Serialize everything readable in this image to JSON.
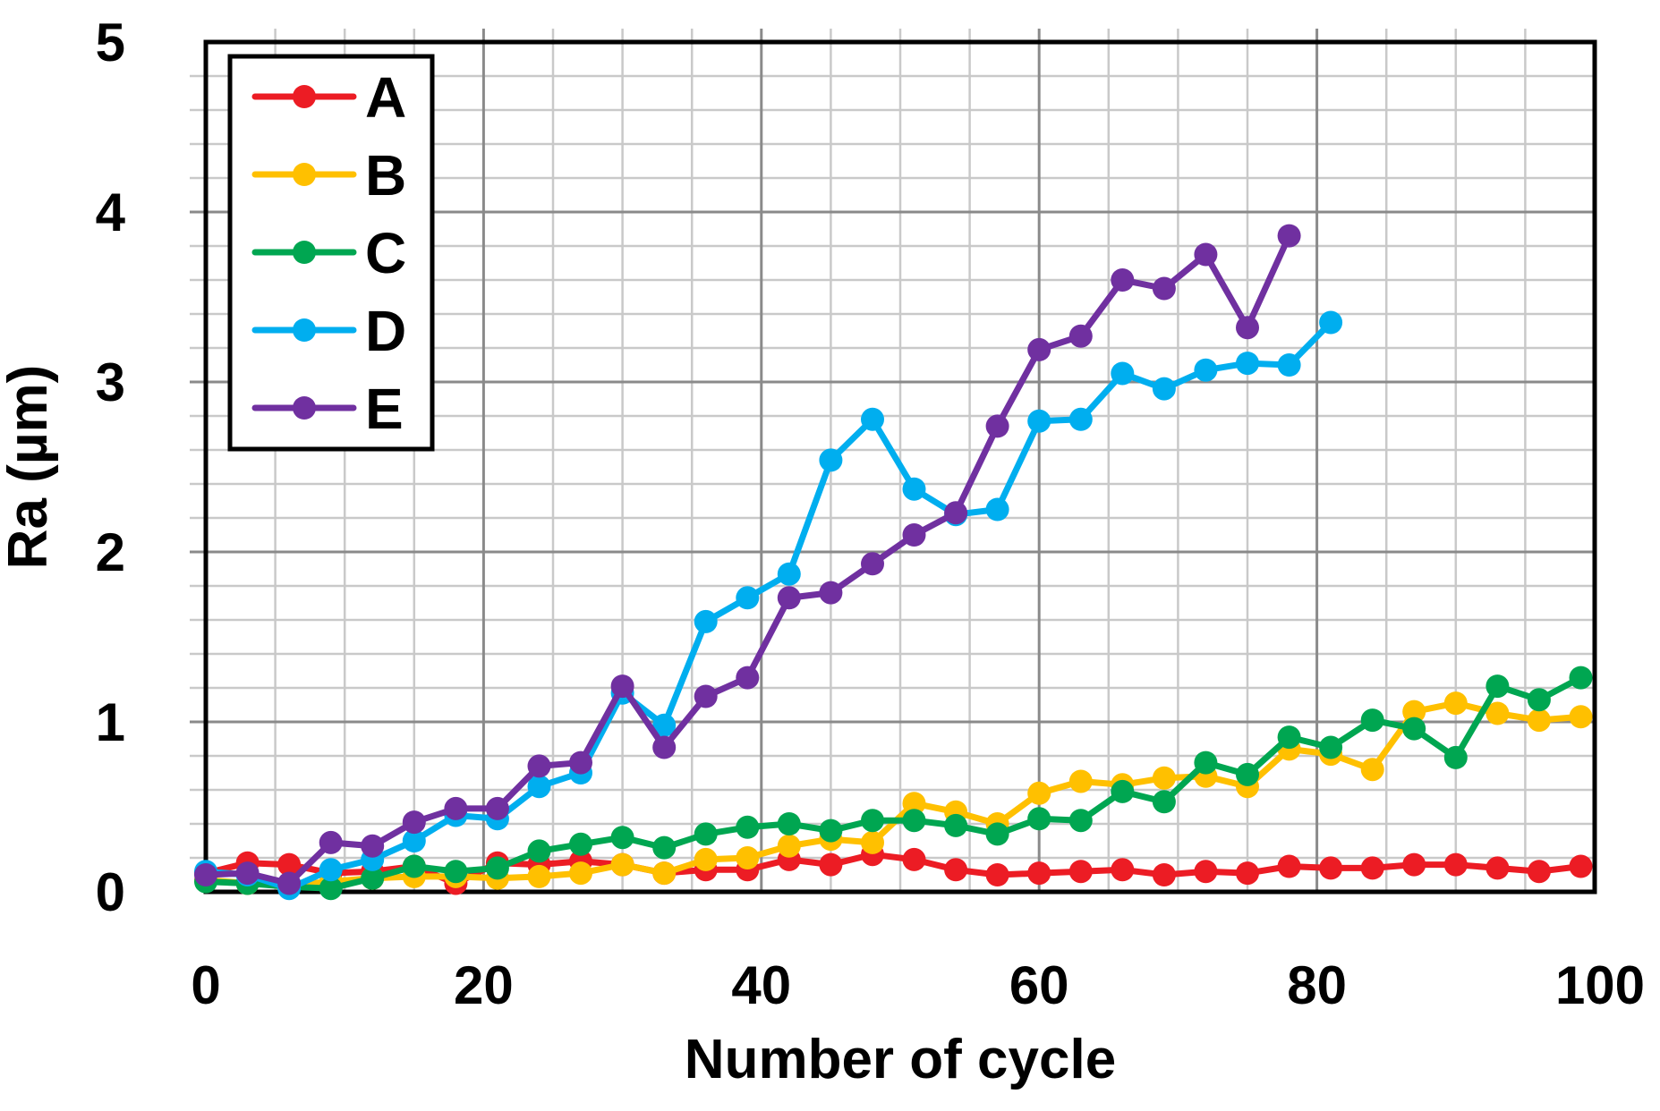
{
  "chart_data": {
    "type": "line",
    "title": "",
    "xlabel": "Number of cycle",
    "ylabel": "Ra (µm)",
    "xlim": [
      0,
      100
    ],
    "ylim": [
      0,
      5
    ],
    "x_major_ticks": [
      0,
      20,
      40,
      60,
      80,
      100
    ],
    "y_major_ticks": [
      0,
      1,
      2,
      3,
      4,
      5
    ],
    "x_minor_step": 5,
    "y_minor_step": 0.2,
    "grid": true,
    "legend_position": "upper-left-inside",
    "series": [
      {
        "name": "A",
        "color": "#EC1C24",
        "x": [
          0,
          3,
          6,
          9,
          12,
          15,
          18,
          21,
          24,
          27,
          30,
          33,
          36,
          39,
          42,
          45,
          48,
          51,
          54,
          57,
          60,
          63,
          66,
          69,
          72,
          75,
          78,
          81,
          84,
          87,
          90,
          93,
          96,
          99
        ],
        "y": [
          0.11,
          0.17,
          0.16,
          0.11,
          0.12,
          0.15,
          0.05,
          0.17,
          0.16,
          0.18,
          0.16,
          0.11,
          0.13,
          0.13,
          0.19,
          0.16,
          0.22,
          0.19,
          0.13,
          0.1,
          0.11,
          0.12,
          0.13,
          0.1,
          0.12,
          0.11,
          0.15,
          0.14,
          0.14,
          0.16,
          0.16,
          0.14,
          0.12,
          0.15
        ]
      },
      {
        "name": "B",
        "color": "#FFC000",
        "x": [
          0,
          3,
          6,
          9,
          12,
          15,
          18,
          21,
          24,
          27,
          30,
          33,
          36,
          39,
          42,
          45,
          48,
          51,
          54,
          57,
          60,
          63,
          66,
          69,
          72,
          75,
          78,
          81,
          84,
          87,
          90,
          93,
          96,
          99
        ],
        "y": [
          0.07,
          0.05,
          0.04,
          0.06,
          0.08,
          0.09,
          0.09,
          0.08,
          0.09,
          0.11,
          0.16,
          0.11,
          0.19,
          0.2,
          0.27,
          0.31,
          0.29,
          0.52,
          0.47,
          0.4,
          0.58,
          0.65,
          0.63,
          0.67,
          0.68,
          0.62,
          0.84,
          0.81,
          0.72,
          1.06,
          1.11,
          1.05,
          1.01,
          1.03
        ]
      },
      {
        "name": "C",
        "color": "#00A651",
        "x": [
          0,
          3,
          6,
          9,
          12,
          15,
          18,
          21,
          24,
          27,
          30,
          33,
          36,
          39,
          42,
          45,
          48,
          51,
          54,
          57,
          60,
          63,
          66,
          69,
          72,
          75,
          78,
          81,
          84,
          87,
          90,
          93,
          96,
          99
        ],
        "y": [
          0.06,
          0.05,
          0.03,
          0.02,
          0.08,
          0.15,
          0.12,
          0.14,
          0.24,
          0.28,
          0.32,
          0.26,
          0.34,
          0.38,
          0.4,
          0.36,
          0.42,
          0.42,
          0.39,
          0.34,
          0.43,
          0.42,
          0.59,
          0.53,
          0.76,
          0.69,
          0.91,
          0.85,
          1.01,
          0.96,
          0.79,
          1.21,
          1.13,
          1.26
        ]
      },
      {
        "name": "D",
        "color": "#00AEEF",
        "x": [
          0,
          3,
          6,
          9,
          12,
          15,
          18,
          21,
          24,
          27,
          30,
          33,
          36,
          39,
          42,
          45,
          48,
          51,
          54,
          57,
          60,
          63,
          66,
          69,
          72,
          75,
          78,
          81
        ],
        "y": [
          0.12,
          0.1,
          0.02,
          0.13,
          0.19,
          0.3,
          0.45,
          0.43,
          0.62,
          0.7,
          1.17,
          0.98,
          1.59,
          1.73,
          1.87,
          2.54,
          2.78,
          2.37,
          2.22,
          2.25,
          2.77,
          2.78,
          3.05,
          2.96,
          3.07,
          3.11,
          3.1,
          3.35
        ]
      },
      {
        "name": "E",
        "color": "#7030A0",
        "x": [
          0,
          3,
          6,
          9,
          12,
          15,
          18,
          21,
          24,
          27,
          30,
          33,
          36,
          39,
          42,
          45,
          48,
          51,
          54,
          57,
          60,
          63,
          66,
          69,
          72,
          75,
          78
        ],
        "y": [
          0.1,
          0.11,
          0.05,
          0.29,
          0.27,
          0.41,
          0.49,
          0.49,
          0.74,
          0.76,
          1.21,
          0.85,
          1.15,
          1.26,
          1.73,
          1.76,
          1.93,
          2.1,
          2.23,
          2.74,
          3.19,
          3.27,
          3.6,
          3.55,
          3.75,
          3.32,
          3.86
        ]
      }
    ]
  },
  "style": {
    "background": "#FFFFFF",
    "grid_minor_color": "#C9C9C9",
    "grid_major_color": "#8A8A8A",
    "axis_color": "#000000",
    "text_color": "#000000",
    "line_width": 7,
    "marker_radius": 13
  }
}
